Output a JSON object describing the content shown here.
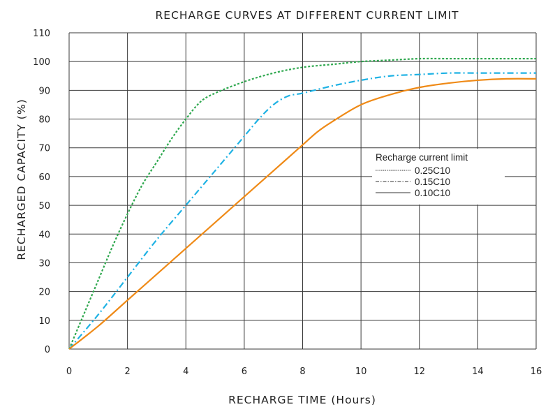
{
  "chart_data": {
    "type": "line",
    "title": "RECHARGE CURVES AT DIFFERENT CURRENT LIMIT",
    "xlabel": "RECHARGE TIME (Hours)",
    "ylabel": "RECHARGED CAPACITY (%)",
    "xlim": [
      0,
      16
    ],
    "ylim": [
      0,
      110
    ],
    "x_ticks": [
      0,
      2,
      4,
      6,
      8,
      10,
      12,
      14,
      16
    ],
    "y_ticks": [
      0,
      10,
      20,
      30,
      40,
      50,
      60,
      70,
      80,
      90,
      100,
      110
    ],
    "grid": true,
    "legend": {
      "title": "Recharge current limit",
      "placement": "right-middle"
    },
    "series": [
      {
        "name": "0.25C10",
        "style": "dotted",
        "color": "#2fa84f",
        "x": [
          0,
          0.5,
          1,
          1.5,
          2,
          2.5,
          3,
          3.5,
          4,
          4.5,
          5,
          6,
          7,
          8,
          9,
          10,
          11,
          12,
          13,
          14,
          15,
          16
        ],
        "y": [
          0,
          12,
          24,
          36,
          47,
          57,
          65,
          73,
          80,
          86,
          89,
          93,
          96,
          98,
          99,
          100,
          100.5,
          101,
          101,
          101,
          101,
          101
        ]
      },
      {
        "name": "0.15C10",
        "style": "dash-dot",
        "color": "#1fb2e4",
        "x": [
          0,
          1,
          2,
          3,
          4,
          5,
          6,
          6.5,
          7,
          7.5,
          8,
          9,
          10,
          11,
          12,
          13,
          14,
          15,
          16
        ],
        "y": [
          0,
          12,
          25,
          38,
          50,
          62,
          74,
          80,
          85,
          88,
          89,
          91.5,
          93.5,
          95,
          95.5,
          96,
          96,
          96,
          96
        ]
      },
      {
        "name": "0.10C10",
        "style": "solid",
        "color": "#ef8a17",
        "x": [
          0,
          1,
          2,
          3,
          4,
          5,
          6,
          7,
          8,
          8.5,
          9,
          10,
          11,
          12,
          13,
          14,
          15,
          16
        ],
        "y": [
          0,
          8,
          17,
          26,
          35,
          44,
          53,
          62,
          71,
          75.5,
          79,
          85,
          88.5,
          91,
          92.5,
          93.5,
          94,
          94
        ]
      }
    ]
  }
}
